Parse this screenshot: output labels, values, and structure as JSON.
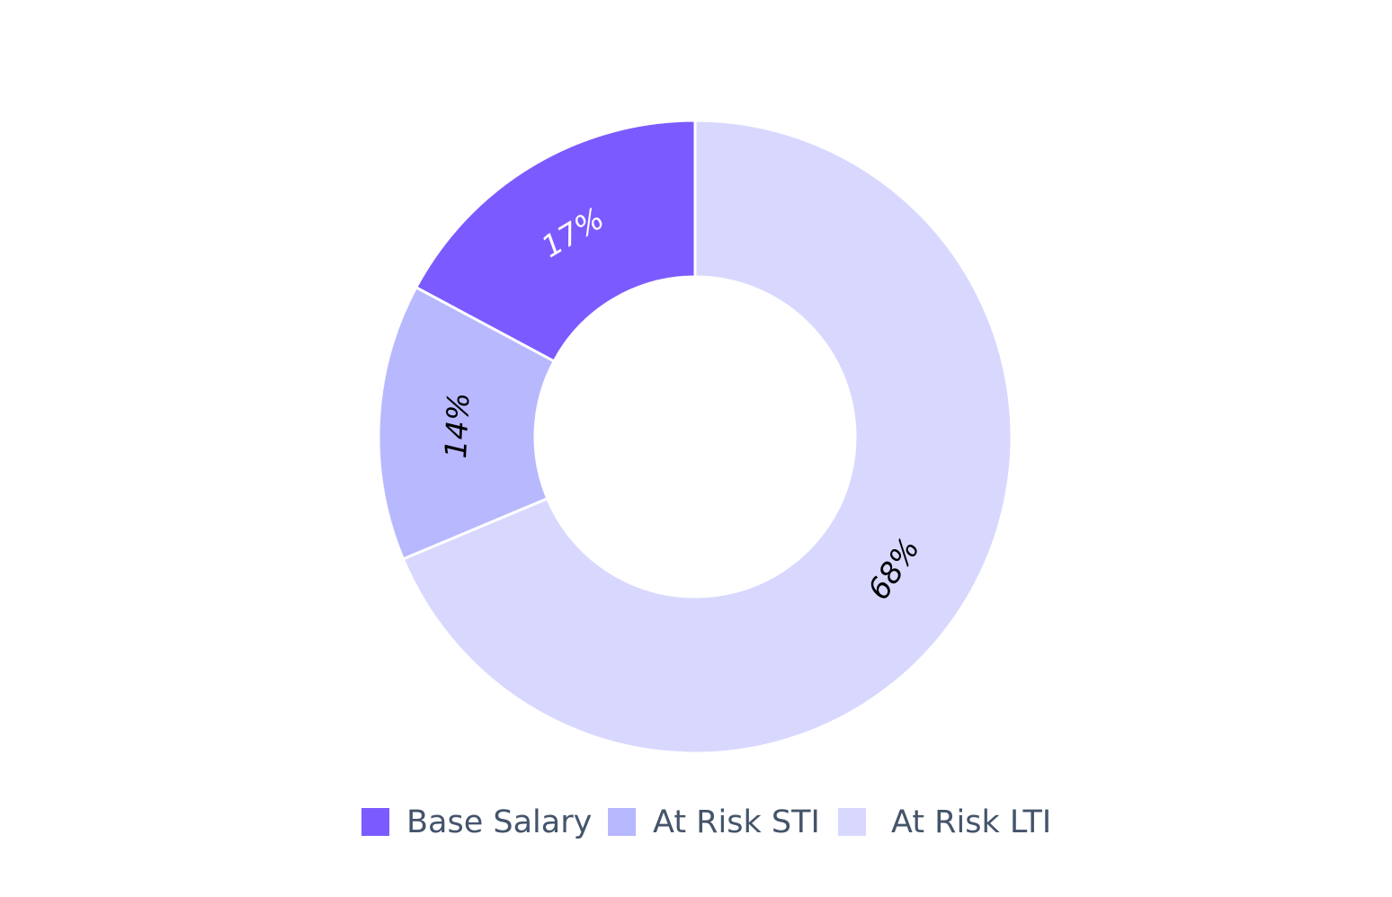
{
  "chart_data": {
    "type": "donut",
    "title": "",
    "categories": [
      "Base Salary",
      "At Risk STI",
      "At Risk LTI"
    ],
    "values": [
      17,
      14,
      68
    ],
    "labels": [
      "17%",
      "14%",
      "68%"
    ],
    "colors": [
      "#7b5bff",
      "#b8b8ff",
      "#d8d8ff"
    ],
    "label_colors": [
      "#ffffff",
      "#000000",
      "#000000"
    ],
    "start_angle_deg": 0,
    "direction": "counterclockwise",
    "legend_position": "bottom"
  }
}
